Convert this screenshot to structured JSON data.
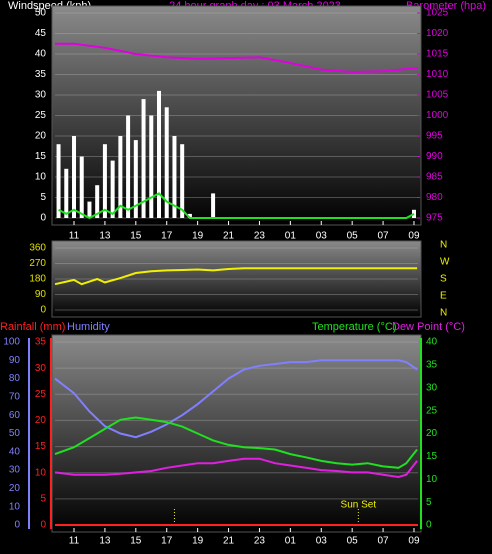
{
  "chart_data": [
    {
      "type": "bar_line",
      "title": "24 hour graph day : 03 March 2023",
      "ylabel": "Windspeed (kph)",
      "y2label": "Barometer (hpa)",
      "xlim": [
        9.77,
        33.26
      ],
      "xticks": [
        11,
        13,
        15,
        17,
        19,
        21,
        23,
        {
          "value": 25,
          "label": "01"
        },
        {
          "value": 27,
          "label": "03"
        },
        {
          "value": 29,
          "label": "05"
        },
        {
          "value": 31,
          "label": "07"
        },
        {
          "value": 33,
          "label": "09"
        }
      ],
      "ylim": [
        0,
        50
      ],
      "yticks": [
        0,
        5,
        10,
        15,
        20,
        25,
        30,
        35,
        40,
        45,
        50
      ],
      "y2lim": [
        975,
        1025
      ],
      "y2ticks": [
        975,
        980,
        985,
        990,
        995,
        1000,
        1005,
        1010,
        1015,
        1020,
        1025
      ],
      "grid": true,
      "axis_colors": {
        "y": "#ffffff",
        "y2": "#e000e0"
      },
      "series": [
        {
          "type": "bar",
          "color": "#ffffff",
          "axis": "y",
          "x": [
            10,
            10.5,
            11,
            11.5,
            12,
            12.5,
            13,
            13.5,
            14,
            14.5,
            15,
            15.5,
            16,
            16.5,
            17,
            17.5,
            18,
            18.5,
            19,
            19.5,
            20,
            20.5,
            21,
            21.5,
            22,
            22.5,
            23,
            23.5,
            24,
            24.5,
            25,
            25.5,
            26,
            26.5,
            27,
            27.5,
            28,
            28.5,
            29,
            29.5,
            30,
            30.5,
            31,
            31.5,
            32,
            32.5,
            33
          ],
          "values": [
            18,
            12,
            20,
            15,
            4,
            8,
            18,
            14,
            20,
            25,
            19,
            29,
            25,
            31,
            27,
            20,
            18,
            1,
            0,
            0,
            6,
            0,
            0,
            0,
            0,
            0,
            0,
            0,
            0,
            0,
            0,
            0,
            0,
            0,
            0,
            0,
            0,
            0,
            0,
            0,
            0,
            0,
            0,
            0,
            0,
            0,
            2
          ]
        },
        {
          "type": "line",
          "color": "#20e020",
          "axis": "y",
          "x": [
            10,
            10.5,
            11,
            11.5,
            12,
            12.5,
            13,
            13.5,
            14,
            14.5,
            15,
            15.5,
            16,
            16.5,
            17,
            17.5,
            18,
            18.5,
            19,
            19.5,
            20,
            20.5,
            21,
            21.5,
            22,
            22.5,
            23,
            23.5,
            24,
            24.5,
            25,
            25.5,
            26,
            26.5,
            27,
            27.5,
            28,
            28.5,
            29,
            29.5,
            30,
            30.5,
            31,
            31.5,
            32,
            32.5,
            33
          ],
          "values": [
            2,
            1,
            2,
            1,
            0,
            1,
            2,
            1,
            3,
            2,
            3,
            4,
            5,
            6,
            4,
            3,
            2,
            0,
            0,
            0,
            0,
            0,
            0,
            0,
            0,
            0,
            0,
            0,
            0,
            0,
            0,
            0,
            0,
            0,
            0,
            0,
            0,
            0,
            0,
            0,
            0,
            0,
            0,
            0,
            0,
            0,
            1
          ]
        },
        {
          "type": "line",
          "color": "#e000e0",
          "axis": "y2",
          "x": [
            9.77,
            11,
            13,
            15,
            17,
            19,
            21,
            23,
            25,
            27,
            29,
            31,
            33,
            33.26
          ],
          "values": [
            1017.5,
            1017.5,
            1016.5,
            1015,
            1014.2,
            1013.8,
            1014,
            1014.2,
            1012.8,
            1011.2,
            1010.6,
            1010.8,
            1011.5,
            1011.5
          ]
        }
      ]
    },
    {
      "type": "line",
      "xlim": [
        9.77,
        33.26
      ],
      "ylim": [
        0,
        360
      ],
      "yticks": [
        0,
        90,
        180,
        270,
        360
      ],
      "grid": true,
      "axis_colors": {
        "y": "#e0e000"
      },
      "compass_labels": [
        "N",
        "W",
        "S",
        "E",
        "N"
      ],
      "series": [
        {
          "color": "#f0f000",
          "axis": "y",
          "x": [
            9.77,
            10.5,
            11,
            11.5,
            12,
            12.5,
            13,
            14,
            15,
            16,
            17,
            18,
            19,
            20,
            21,
            22,
            23,
            24,
            25,
            26,
            27,
            28,
            29,
            30,
            31,
            32,
            33.2
          ],
          "values": [
            150,
            165,
            175,
            150,
            165,
            180,
            160,
            185,
            215,
            225,
            230,
            232,
            235,
            230,
            238,
            242,
            242,
            242,
            242,
            242,
            242,
            242,
            242,
            242,
            242,
            242,
            242
          ]
        }
      ]
    },
    {
      "type": "line",
      "xlim": [
        9.77,
        33.26
      ],
      "xticks": [
        11,
        13,
        15,
        17,
        19,
        21,
        23,
        {
          "value": 25,
          "label": "01"
        },
        {
          "value": 27,
          "label": "03"
        },
        {
          "value": 29,
          "label": "05"
        },
        {
          "value": 31,
          "label": "07"
        },
        {
          "value": 33,
          "label": "09"
        }
      ],
      "ylim": [
        0,
        35
      ],
      "yticks": [
        0,
        5,
        10,
        15,
        20,
        25,
        30,
        35
      ],
      "y2lim": [
        0,
        40
      ],
      "y2ticks": [
        0,
        5,
        10,
        15,
        20,
        25,
        30,
        35,
        40
      ],
      "y3lim": [
        0,
        100
      ],
      "y3ticks": [
        0,
        10,
        20,
        30,
        40,
        50,
        60,
        70,
        80,
        90,
        100
      ],
      "grid": true,
      "axis_colors": {
        "y": "#ff2020",
        "y2": "#20e020",
        "y3": "#8080ff"
      },
      "markers": [
        17.5,
        29.4
      ],
      "annotations": [
        {
          "text": "Sun Set",
          "x": 29.4
        }
      ],
      "series": [
        {
          "name": "Rainfall (mm)",
          "color": "#ff2020",
          "axis": "y",
          "x": [
            9.77,
            33.26
          ],
          "values": [
            0,
            0
          ]
        },
        {
          "name": "Humidity",
          "color": "#8080ff",
          "axis": "y3",
          "x": [
            9.77,
            11,
            12,
            13,
            14,
            15,
            16,
            17,
            18,
            19,
            20,
            21,
            22,
            23,
            24,
            25,
            26,
            27,
            28,
            29,
            30,
            31,
            32,
            32.5,
            33.2
          ],
          "values": [
            80,
            72,
            62,
            54,
            50,
            48,
            51,
            55,
            60,
            66,
            73,
            80,
            85,
            87,
            88,
            89,
            89,
            90,
            90,
            90,
            90,
            90,
            90,
            89,
            85
          ]
        },
        {
          "name": "Temperature (°C)",
          "color": "#20e020",
          "axis": "y2",
          "x": [
            9.77,
            11,
            12,
            13,
            14,
            15,
            16,
            17,
            18,
            19,
            20,
            21,
            22,
            23,
            24,
            25,
            26,
            27,
            28,
            29,
            30,
            31,
            32,
            32.5,
            33.2
          ],
          "values": [
            15.5,
            17,
            19,
            21,
            23,
            23.5,
            23,
            22.5,
            21.5,
            20,
            18.5,
            17.5,
            17,
            16.8,
            16.5,
            15.5,
            14.8,
            14,
            13.5,
            13.2,
            13.5,
            12.8,
            12.5,
            13.5,
            16.5
          ]
        },
        {
          "name": "Dew Point (°C)",
          "color": "#e020e0",
          "axis": "y2",
          "x": [
            9.77,
            11,
            12,
            13,
            14,
            15,
            16,
            17,
            18,
            19,
            20,
            21,
            22,
            23,
            24,
            25,
            26,
            27,
            28,
            29,
            30,
            31,
            32,
            32.5,
            33.2
          ],
          "values": [
            11.5,
            11,
            11,
            11,
            11.2,
            11.5,
            11.8,
            12.5,
            13,
            13.5,
            13.5,
            14,
            14.5,
            14.5,
            13.5,
            13,
            12.5,
            12,
            11.8,
            11.5,
            11.5,
            11,
            10.5,
            11,
            14
          ]
        }
      ]
    }
  ]
}
